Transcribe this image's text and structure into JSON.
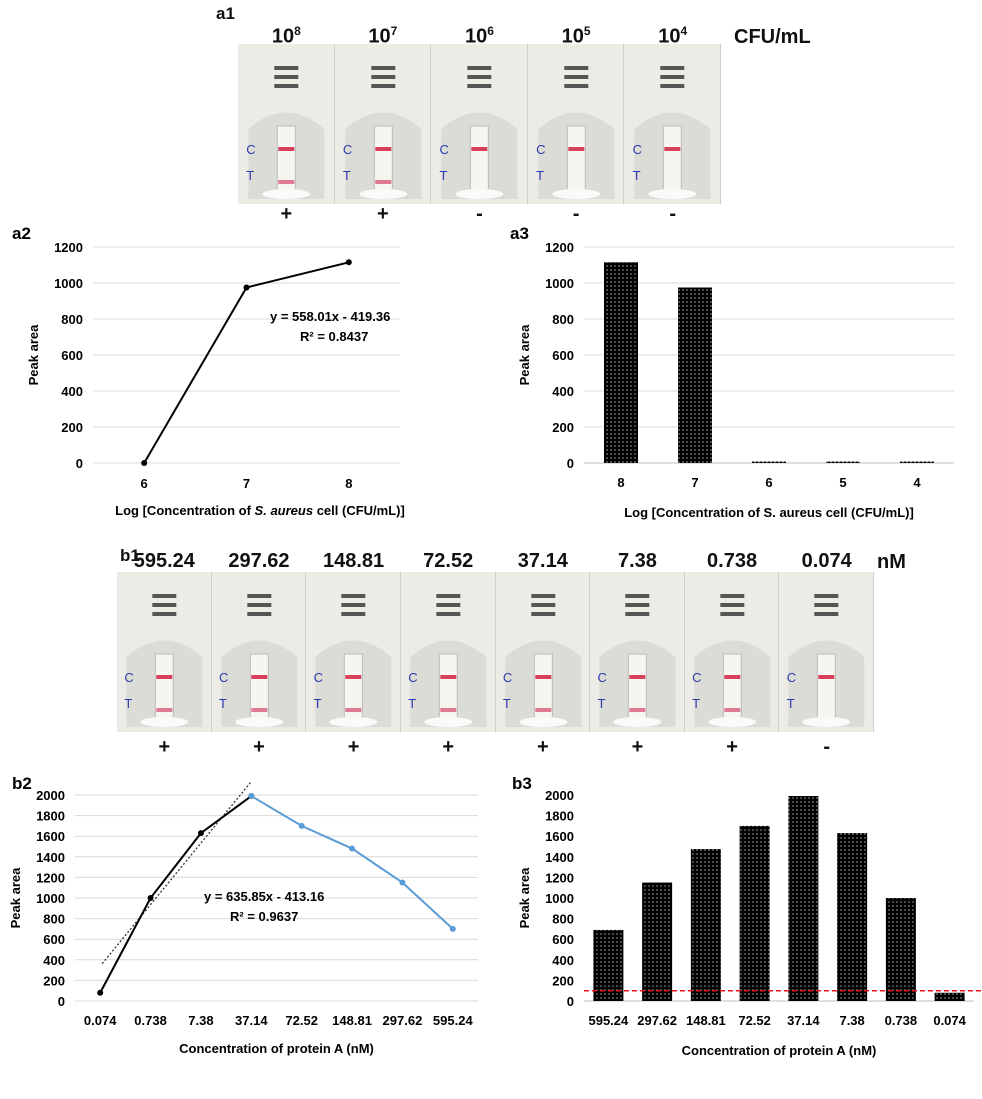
{
  "panel_a1": {
    "label": "a1",
    "unit": "CFU/mL",
    "strips": [
      {
        "base": "10",
        "exp": "8",
        "result": "+",
        "test_line": true
      },
      {
        "base": "10",
        "exp": "7",
        "result": "+",
        "test_line": true
      },
      {
        "base": "10",
        "exp": "6",
        "result": "-",
        "test_line": false
      },
      {
        "base": "10",
        "exp": "5",
        "result": "-",
        "test_line": false
      },
      {
        "base": "10",
        "exp": "4",
        "result": "-",
        "test_line": false
      }
    ],
    "c_label": "C",
    "t_label": "T"
  },
  "panel_b1": {
    "label": "b1",
    "unit": "nM",
    "strips": [
      {
        "conc": "595.24",
        "result": "+",
        "test_line": true
      },
      {
        "conc": "297.62",
        "result": "+",
        "test_line": true
      },
      {
        "conc": "148.81",
        "result": "+",
        "test_line": true
      },
      {
        "conc": "72.52",
        "result": "+",
        "test_line": true
      },
      {
        "conc": "37.14",
        "result": "+",
        "test_line": true
      },
      {
        "conc": "7.38",
        "result": "+",
        "test_line": true
      },
      {
        "conc": "0.738",
        "result": "+",
        "test_line": true
      },
      {
        "conc": "0.074",
        "result": "-",
        "test_line": false
      }
    ],
    "c_label": "C",
    "t_label": "T"
  },
  "chart_data": [
    {
      "id": "a2",
      "type": "line",
      "label": "a2",
      "x": [
        6,
        7,
        8
      ],
      "y": [
        0,
        975,
        1115
      ],
      "trendline": {
        "slope": 558.01,
        "intercept": -419.36
      },
      "equation": "y = 558.01x - 419.36",
      "r2": "R² = 0.8437",
      "xlabel_pre": "Log [Concentration  of ",
      "xlabel_italic": "S. aureus",
      "xlabel_post": " cell (CFU/mL)]",
      "ylabel": "Peak area",
      "ylim": [
        0,
        1200
      ],
      "yticks": [
        0,
        200,
        400,
        600,
        800,
        1000,
        1200
      ],
      "xticks": [
        6,
        7,
        8
      ],
      "grid": true,
      "line_color": "#000000"
    },
    {
      "id": "a3",
      "type": "bar",
      "label": "a3",
      "categories": [
        "8",
        "7",
        "6",
        "5",
        "4"
      ],
      "values": [
        1115,
        975,
        8,
        8,
        8
      ],
      "xlabel": "Log [Concentration  of  S. aureus cell (CFU/mL)]",
      "ylabel": "Peak area",
      "ylim": [
        0,
        1200
      ],
      "yticks": [
        0,
        200,
        400,
        600,
        800,
        1000,
        1200
      ],
      "grid": true
    },
    {
      "id": "b2",
      "type": "line",
      "label": "b2",
      "categories": [
        "0.074",
        "0.738",
        "7.38",
        "37.14",
        "72.52",
        "148.81",
        "297.62",
        "595.24"
      ],
      "series": [
        {
          "values": [
            80,
            1000,
            1630,
            1990,
            null,
            null,
            null,
            null
          ],
          "color": "#000000"
        },
        {
          "values": [
            null,
            null,
            null,
            1990,
            1700,
            1480,
            1150,
            700
          ],
          "color": "#5b9bd5"
        }
      ],
      "trendline": {
        "x_from": 1,
        "x_to": 4,
        "slope": 635.85,
        "intercept": -413.16
      },
      "equation": "y = 635.85x - 413.16",
      "r2": "R² = 0.9637",
      "xlabel": "Concentration  of protein A (nM)",
      "ylabel": "Peak area",
      "ylim": [
        0,
        2000
      ],
      "yticks": [
        0,
        200,
        400,
        600,
        800,
        1000,
        1200,
        1400,
        1600,
        1800,
        2000
      ],
      "grid": true
    },
    {
      "id": "b3",
      "type": "bar",
      "label": "b3",
      "categories": [
        "595.24",
        "297.62",
        "148.81",
        "72.52",
        "37.14",
        "7.38",
        "0.738",
        "0.074"
      ],
      "values": [
        690,
        1150,
        1475,
        1700,
        1990,
        1630,
        1000,
        80
      ],
      "threshold": 100,
      "threshold_color": "#e0191f",
      "xlabel": "Concentration  of protein A (nM)",
      "ylabel": "Peak area",
      "ylim": [
        0,
        2000
      ],
      "yticks": [
        0,
        200,
        400,
        600,
        800,
        1000,
        1200,
        1400,
        1600,
        1800,
        2000
      ],
      "grid": false
    }
  ]
}
